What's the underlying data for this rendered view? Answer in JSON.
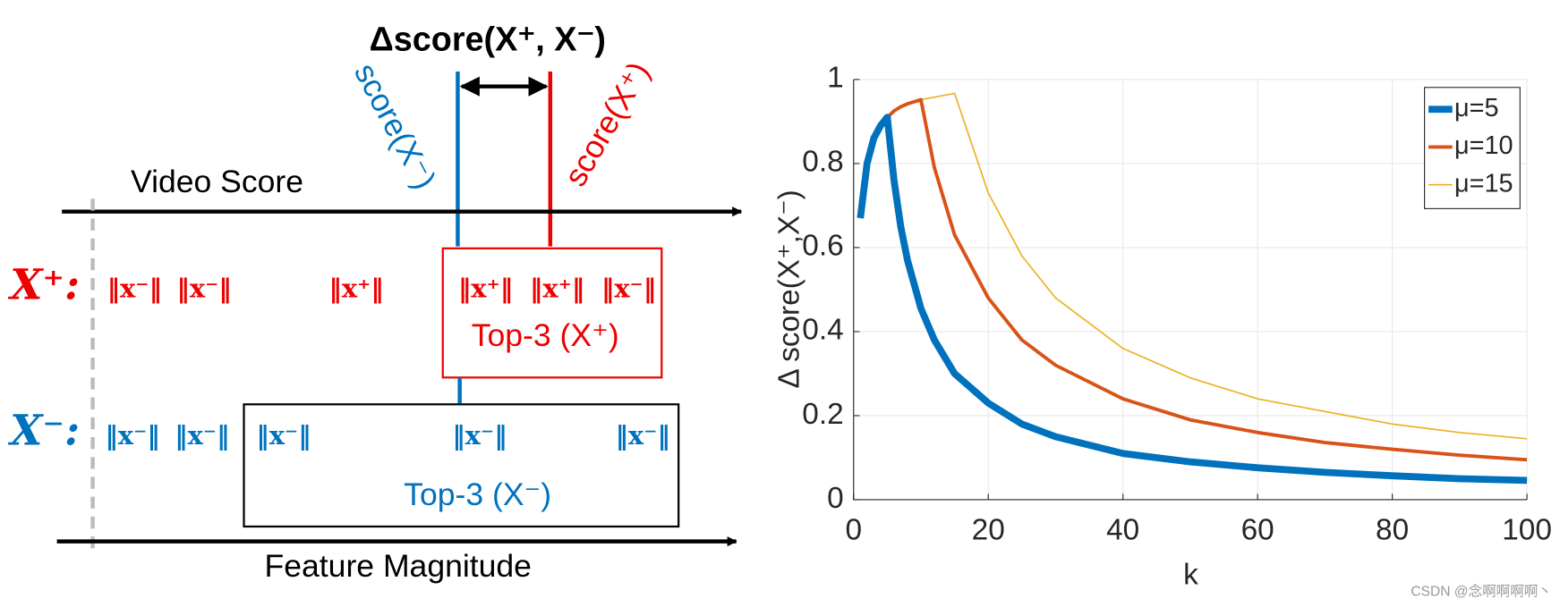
{
  "diagram": {
    "title": "Δscore(X⁺, X⁻)",
    "score_minus": "score(X⁻)",
    "score_plus": "score(X⁺)",
    "video_score": "Video Score",
    "feature_magnitude": "Feature Magnitude",
    "x_plus": {
      "label": "X⁺:",
      "items": [
        "‖x⁻‖",
        "‖x⁻‖",
        "‖x⁺‖",
        "‖x⁺‖",
        "‖x⁺‖",
        "‖x⁻‖"
      ],
      "top": "Top-3 (X⁺)"
    },
    "x_minus": {
      "label": "X⁻:",
      "items": [
        "‖x⁻‖",
        "‖x⁻‖",
        "‖x⁻‖",
        "‖x⁻‖",
        "‖x⁻‖"
      ],
      "top": "Top-3 (X⁻)"
    }
  },
  "chart_data": {
    "type": "line",
    "xlabel": "k",
    "ylabel": "Δ score(X⁺,X⁻)",
    "x": [
      1,
      2,
      3,
      4,
      5,
      6,
      7,
      8,
      10,
      12,
      15,
      20,
      25,
      30,
      40,
      50,
      60,
      70,
      80,
      90,
      100
    ],
    "series": [
      {
        "name": "μ=5",
        "color": "#0072bd",
        "line_width": 7,
        "values": [
          0.67,
          0.8,
          0.86,
          0.89,
          0.91,
          0.76,
          0.65,
          0.57,
          0.455,
          0.38,
          0.3,
          0.23,
          0.18,
          0.15,
          0.11,
          0.09,
          0.076,
          0.065,
          0.057,
          0.05,
          0.046
        ]
      },
      {
        "name": "μ=10",
        "color": "#d95319",
        "line_width": 3.5,
        "values": [
          0.67,
          0.8,
          0.86,
          0.89,
          0.91,
          0.925,
          0.935,
          0.942,
          0.952,
          0.79,
          0.63,
          0.48,
          0.38,
          0.32,
          0.24,
          0.19,
          0.16,
          0.136,
          0.12,
          0.106,
          0.095
        ]
      },
      {
        "name": "μ=15",
        "color": "#edb120",
        "line_width": 1.5,
        "values": [
          0.67,
          0.8,
          0.86,
          0.89,
          0.91,
          0.925,
          0.935,
          0.942,
          0.952,
          0.958,
          0.967,
          0.73,
          0.58,
          0.48,
          0.36,
          0.29,
          0.24,
          0.21,
          0.18,
          0.16,
          0.145
        ]
      }
    ],
    "xlim": [
      0,
      100
    ],
    "xticks": [
      0,
      20,
      40,
      60,
      80,
      100
    ],
    "ylim": [
      0,
      1
    ],
    "yticks": [
      0,
      0.2,
      0.4,
      0.6,
      0.8,
      1
    ],
    "grid": true,
    "legend": "upper-right"
  },
  "watermark": "CSDN @念啊啊啊啊丶"
}
